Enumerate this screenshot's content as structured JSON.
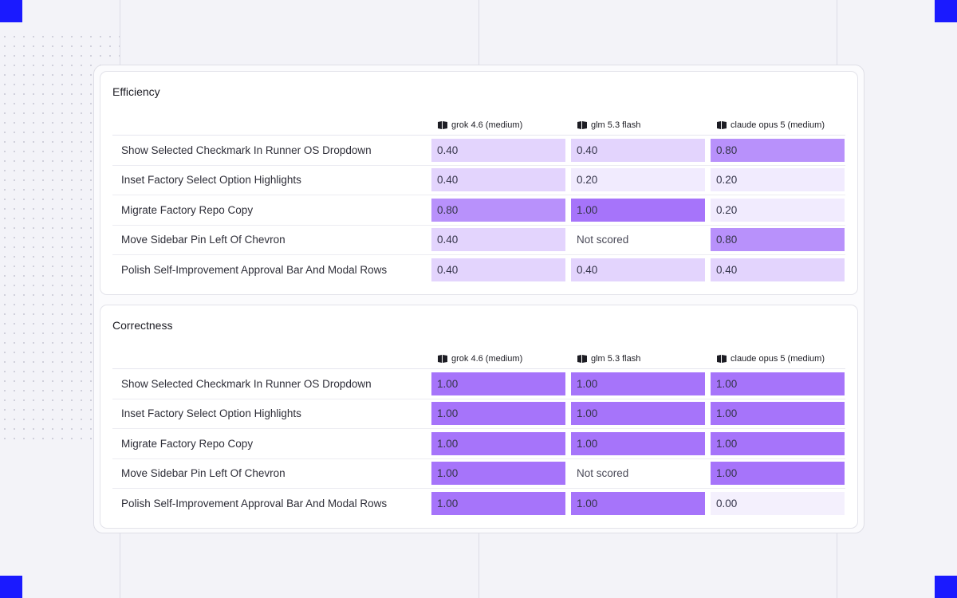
{
  "models": [
    {
      "name": "grok 4.6 (medium)",
      "icon": "model-logo-icon"
    },
    {
      "name": "glm 5.3 flash",
      "icon": "model-logo-icon"
    },
    {
      "name": "claude opus 5 (medium)",
      "icon": "model-logo-icon"
    }
  ],
  "colors": {
    "accent": "#1a1aff",
    "score_0": "#f4f0fd",
    "score_20": "#f1ebfe",
    "score_40": "#e3d4fd",
    "score_80": "#b891fb",
    "score_100": "#a674fa"
  },
  "sections": [
    {
      "title": "Efficiency",
      "rows": [
        {
          "label": "Show Selected Checkmark In Runner OS Dropdown",
          "scores": [
            "0.40",
            "0.40",
            "0.80"
          ]
        },
        {
          "label": "Inset Factory Select Option Highlights",
          "scores": [
            "0.40",
            "0.20",
            "0.20"
          ]
        },
        {
          "label": "Migrate Factory Repo Copy",
          "scores": [
            "0.80",
            "1.00",
            "0.20"
          ]
        },
        {
          "label": "Move Sidebar Pin Left Of Chevron",
          "scores": [
            "0.40",
            "Not scored",
            "0.80"
          ]
        },
        {
          "label": "Polish Self-Improvement Approval Bar And Modal Rows",
          "scores": [
            "0.40",
            "0.40",
            "0.40"
          ]
        }
      ]
    },
    {
      "title": "Correctness",
      "rows": [
        {
          "label": "Show Selected Checkmark In Runner OS Dropdown",
          "scores": [
            "1.00",
            "1.00",
            "1.00"
          ]
        },
        {
          "label": "Inset Factory Select Option Highlights",
          "scores": [
            "1.00",
            "1.00",
            "1.00"
          ]
        },
        {
          "label": "Migrate Factory Repo Copy",
          "scores": [
            "1.00",
            "1.00",
            "1.00"
          ]
        },
        {
          "label": "Move Sidebar Pin Left Of Chevron",
          "scores": [
            "1.00",
            "Not scored",
            "1.00"
          ]
        },
        {
          "label": "Polish Self-Improvement Approval Bar And Modal Rows",
          "scores": [
            "1.00",
            "1.00",
            "0.00"
          ]
        }
      ]
    }
  ]
}
